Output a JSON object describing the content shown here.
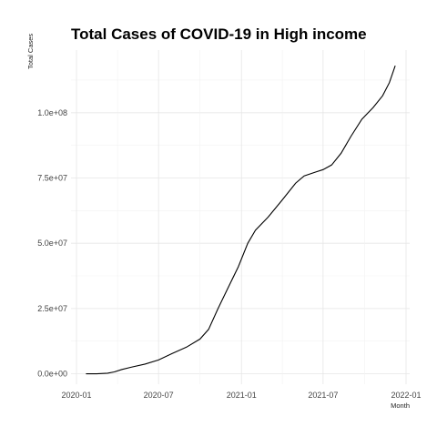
{
  "chart_data": {
    "type": "line",
    "title": "Total Cases of COVID-19 in High income",
    "xlabel": "Month",
    "ylabel": "Total Cases",
    "x_ticks": [
      "2020-01",
      "2020-07",
      "2021-01",
      "2021-07",
      "2022-01"
    ],
    "y_ticks": [
      "0.0e+00",
      "2.5e+07",
      "5.0e+07",
      "7.5e+07",
      "1.0e+08"
    ],
    "ylim": [
      -4000000,
      124000000
    ],
    "xlim": [
      "2020-01-01",
      "2022-01-01"
    ],
    "grid": true,
    "series": [
      {
        "points": [
          [
            "2020-01-22",
            0
          ],
          [
            "2020-02-15",
            0
          ],
          [
            "2020-03-10",
            200000
          ],
          [
            "2020-03-25",
            700000
          ],
          [
            "2020-04-10",
            1600000
          ],
          [
            "2020-05-01",
            2500000
          ],
          [
            "2020-06-01",
            3700000
          ],
          [
            "2020-07-01",
            5300000
          ],
          [
            "2020-08-01",
            7800000
          ],
          [
            "2020-09-01",
            10200000
          ],
          [
            "2020-10-01",
            13300000
          ],
          [
            "2020-10-20",
            17000000
          ],
          [
            "2020-11-10",
            25000000
          ],
          [
            "2020-12-01",
            32500000
          ],
          [
            "2020-12-25",
            41000000
          ],
          [
            "2021-01-15",
            50000000
          ],
          [
            "2021-02-01",
            55000000
          ],
          [
            "2021-03-01",
            60000000
          ],
          [
            "2021-04-01",
            66500000
          ],
          [
            "2021-05-01",
            73000000
          ],
          [
            "2021-05-20",
            75800000
          ],
          [
            "2021-06-15",
            77300000
          ],
          [
            "2021-07-01",
            78200000
          ],
          [
            "2021-07-20",
            80000000
          ],
          [
            "2021-08-10",
            84500000
          ],
          [
            "2021-09-01",
            91000000
          ],
          [
            "2021-09-25",
            97500000
          ],
          [
            "2021-10-20",
            102000000
          ],
          [
            "2021-11-10",
            106500000
          ],
          [
            "2021-11-25",
            111500000
          ],
          [
            "2021-12-08",
            118000000
          ]
        ]
      }
    ]
  }
}
